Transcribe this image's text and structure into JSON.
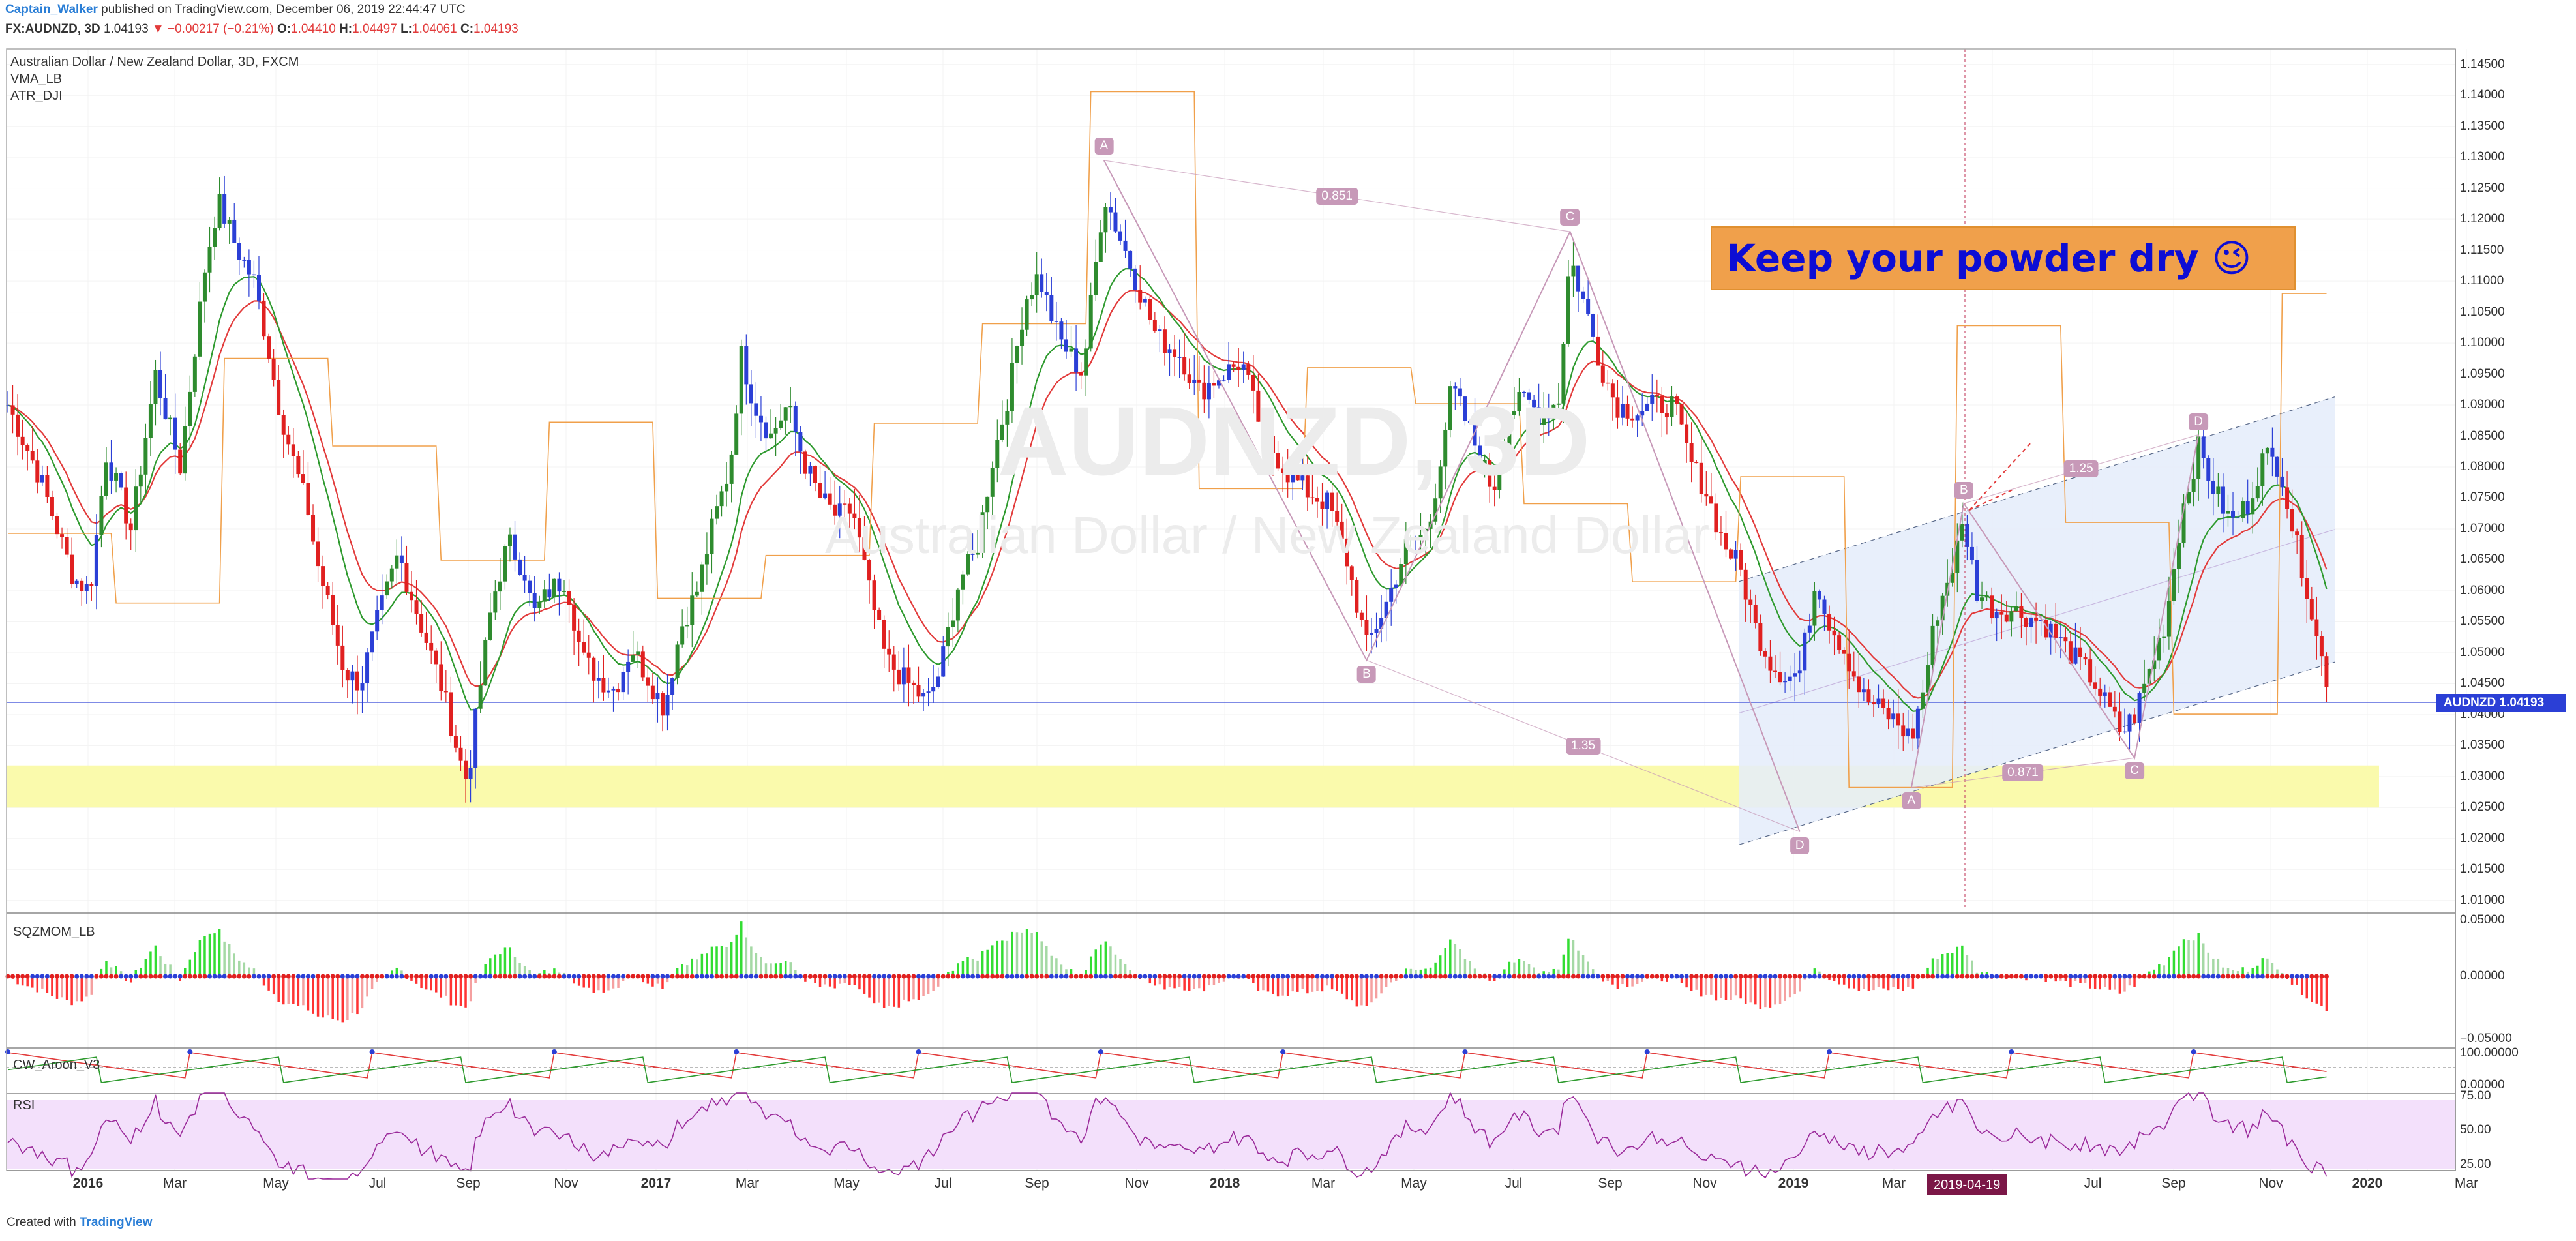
{
  "header": {
    "user": "Captain_Walker",
    "published": "published on TradingView.com, December 06, 2019 22:44:47 UTC",
    "symbol": "FX:AUDNZD, 3D",
    "last": "1.04193",
    "change": "▼ −0.00217 (−0.21%)",
    "o_label": "O:",
    "o": "1.04410",
    "h_label": "H:",
    "h": "1.04497",
    "l_label": "L:",
    "l": "1.04061",
    "c_label": "C:",
    "c": "1.04193"
  },
  "legend": {
    "title": "Australian Dollar / New Zealand Dollar, 3D, FXCM",
    "ind1": "VMA_LB",
    "ind2": "ATR_DJI"
  },
  "watermark": {
    "symbol": "AUDNZD, 3D",
    "name": "Australian Dollar / New Zealand Dollar"
  },
  "callout": {
    "text": "Keep your powder dry 😉"
  },
  "price_tag": {
    "label": "AUDNZD",
    "value": "1.04193"
  },
  "date_tag": "2019-04-19",
  "footer": {
    "created": "Created with",
    "brand": "TradingView"
  },
  "panes": {
    "sqz": "SQZMOM_LB",
    "aroon": "CW_Aroon_V3",
    "rsi": "RSI"
  },
  "colors": {
    "up": "#2e8b2e",
    "down": "#e02020",
    "blue": "#2b3fd6",
    "vma": "#2e9a2e",
    "ma_red": "#e23b3b",
    "atr": "#f0a04b",
    "pattern": "#c799b8",
    "support": "#fafaa8",
    "channel": "#e4ecfa"
  },
  "chart_data": {
    "type": "candlestick",
    "title": "Australian Dollar / New Zealand Dollar, 3D, FXCM",
    "x_ticks": [
      "2016",
      "Mar",
      "May",
      "Jul",
      "Sep",
      "Nov",
      "2017",
      "Mar",
      "May",
      "Jul",
      "Sep",
      "Nov",
      "2018",
      "Mar",
      "May",
      "Jul",
      "Sep",
      "Nov",
      "2019",
      "Mar",
      "May",
      "Jul",
      "Sep",
      "Nov",
      "2020",
      "Mar"
    ],
    "x_ticks_bold": [
      "2016",
      "2017",
      "2018",
      "2019",
      "2020"
    ],
    "y_ticks": [
      "1.14500",
      "1.14000",
      "1.13500",
      "1.13000",
      "1.12500",
      "1.12000",
      "1.11500",
      "1.11000",
      "1.10500",
      "1.10000",
      "1.09500",
      "1.09000",
      "1.08500",
      "1.08000",
      "1.07500",
      "1.07000",
      "1.06500",
      "1.06000",
      "1.05500",
      "1.05000",
      "1.04500",
      "1.04000",
      "1.03500",
      "1.03000",
      "1.02500",
      "1.02000",
      "1.01500",
      "1.01000"
    ],
    "ylim": [
      1.0085,
      1.1475
    ],
    "price_path": [
      [
        0,
        1.09
      ],
      [
        20,
        1.078
      ],
      [
        40,
        1.062
      ],
      [
        50,
        1.06
      ],
      [
        60,
        1.082
      ],
      [
        75,
        1.07
      ],
      [
        90,
        1.095
      ],
      [
        105,
        1.08
      ],
      [
        120,
        1.112
      ],
      [
        128,
        1.123
      ],
      [
        140,
        1.115
      ],
      [
        150,
        1.11
      ],
      [
        158,
        1.1
      ],
      [
        165,
        1.09
      ],
      [
        175,
        1.08
      ],
      [
        183,
        1.073
      ],
      [
        188,
        1.065
      ],
      [
        195,
        1.058
      ],
      [
        205,
        1.047
      ],
      [
        215,
        1.045
      ],
      [
        225,
        1.055
      ],
      [
        238,
        1.066
      ],
      [
        245,
        1.06
      ],
      [
        255,
        1.052
      ],
      [
        265,
        1.044
      ],
      [
        275,
        1.033
      ],
      [
        280,
        1.029
      ],
      [
        287,
        1.043
      ],
      [
        295,
        1.058
      ],
      [
        305,
        1.068
      ],
      [
        315,
        1.063
      ],
      [
        320,
        1.056
      ],
      [
        330,
        1.06
      ],
      [
        340,
        1.062
      ],
      [
        350,
        1.049
      ],
      [
        360,
        1.046
      ],
      [
        370,
        1.044
      ],
      [
        380,
        1.051
      ],
      [
        390,
        1.046
      ],
      [
        400,
        1.041
      ],
      [
        410,
        1.054
      ],
      [
        420,
        1.06
      ],
      [
        430,
        1.071
      ],
      [
        440,
        1.08
      ],
      [
        447,
        1.098
      ],
      [
        455,
        1.09
      ],
      [
        465,
        1.085
      ],
      [
        475,
        1.09
      ],
      [
        485,
        1.081
      ],
      [
        495,
        1.075
      ],
      [
        505,
        1.072
      ],
      [
        515,
        1.073
      ],
      [
        525,
        1.06
      ],
      [
        535,
        1.049
      ],
      [
        545,
        1.046
      ],
      [
        560,
        1.042
      ],
      [
        568,
        1.047
      ],
      [
        580,
        1.062
      ],
      [
        590,
        1.066
      ],
      [
        600,
        1.081
      ],
      [
        610,
        1.092
      ],
      [
        620,
        1.107
      ],
      [
        628,
        1.111
      ],
      [
        640,
        1.101
      ],
      [
        655,
        1.095
      ],
      [
        668,
        1.124
      ],
      [
        685,
        1.112
      ],
      [
        700,
        1.101
      ],
      [
        715,
        1.098
      ],
      [
        725,
        1.092
      ],
      [
        740,
        1.095
      ],
      [
        752,
        1.097
      ],
      [
        765,
        1.085
      ],
      [
        780,
        1.079
      ],
      [
        792,
        1.076
      ],
      [
        805,
        1.074
      ],
      [
        815,
        1.066
      ],
      [
        828,
        1.051
      ],
      [
        840,
        1.058
      ],
      [
        852,
        1.067
      ],
      [
        866,
        1.07
      ],
      [
        880,
        1.093
      ],
      [
        895,
        1.083
      ],
      [
        905,
        1.076
      ],
      [
        915,
        1.089
      ],
      [
        925,
        1.091
      ],
      [
        935,
        1.088
      ],
      [
        945,
        1.091
      ],
      [
        952,
        1.114
      ],
      [
        962,
        1.105
      ],
      [
        970,
        1.097
      ],
      [
        980,
        1.09
      ],
      [
        992,
        1.089
      ],
      [
        1005,
        1.09
      ],
      [
        1015,
        1.09
      ],
      [
        1025,
        1.081
      ],
      [
        1035,
        1.076
      ],
      [
        1045,
        1.068
      ],
      [
        1055,
        1.064
      ],
      [
        1065,
        1.054
      ],
      [
        1075,
        1.048
      ],
      [
        1085,
        1.046
      ],
      [
        1092,
        1.047
      ],
      [
        1102,
        1.062
      ],
      [
        1110,
        1.055
      ],
      [
        1120,
        1.05
      ],
      [
        1130,
        1.043
      ],
      [
        1140,
        1.041
      ],
      [
        1150,
        1.039
      ],
      [
        1160,
        1.036
      ],
      [
        1168,
        1.045
      ],
      [
        1175,
        1.056
      ],
      [
        1185,
        1.064
      ],
      [
        1192,
        1.071
      ],
      [
        1200,
        1.06
      ],
      [
        1210,
        1.057
      ],
      [
        1220,
        1.057
      ],
      [
        1230,
        1.056
      ],
      [
        1240,
        1.055
      ],
      [
        1250,
        1.052
      ],
      [
        1260,
        1.049
      ],
      [
        1270,
        1.046
      ],
      [
        1280,
        1.041
      ],
      [
        1288,
        1.037
      ],
      [
        1296,
        1.04
      ],
      [
        1305,
        1.047
      ],
      [
        1315,
        1.055
      ],
      [
        1325,
        1.073
      ],
      [
        1335,
        1.083
      ],
      [
        1345,
        1.076
      ],
      [
        1355,
        1.071
      ],
      [
        1365,
        1.074
      ],
      [
        1375,
        1.082
      ],
      [
        1385,
        1.08
      ],
      [
        1393,
        1.069
      ],
      [
        1400,
        1.062
      ],
      [
        1408,
        1.051
      ],
      [
        1413,
        1.046
      ],
      [
        1416,
        1.042
      ]
    ],
    "last_price": 1.04193,
    "support_zone": [
      1.025,
      1.0318
    ],
    "channel": {
      "lower_start": 1.019,
      "lower_end": 1.0485,
      "upper_start": 1.0615,
      "upper_end": 1.0913
    },
    "harmonic_1": {
      "points": [
        "A",
        "B",
        "C",
        "D"
      ],
      "ratios": [
        "0.851",
        "1.35"
      ],
      "values": [
        1.1295,
        1.0488,
        1.118,
        1.0211
      ]
    },
    "harmonic_2": {
      "points": [
        "A",
        "B",
        "C",
        "D"
      ],
      "ratios": [
        "1.25",
        "0.871"
      ],
      "values": [
        1.0282,
        1.0741,
        1.033,
        1.0852
      ]
    },
    "sqzmom": {
      "name": "SQZMOM_LB",
      "ylim": [
        -0.05,
        0.05
      ],
      "y_ticks": [
        "0.05000",
        "0.00000",
        "−0.05000"
      ]
    },
    "aroon": {
      "name": "CW_Aroon_V3",
      "y_ticks": [
        "100.00000",
        "0.00000"
      ]
    },
    "rsi": {
      "name": "RSI",
      "y_ticks": [
        "75.00",
        "50.00",
        "25.00"
      ]
    }
  }
}
